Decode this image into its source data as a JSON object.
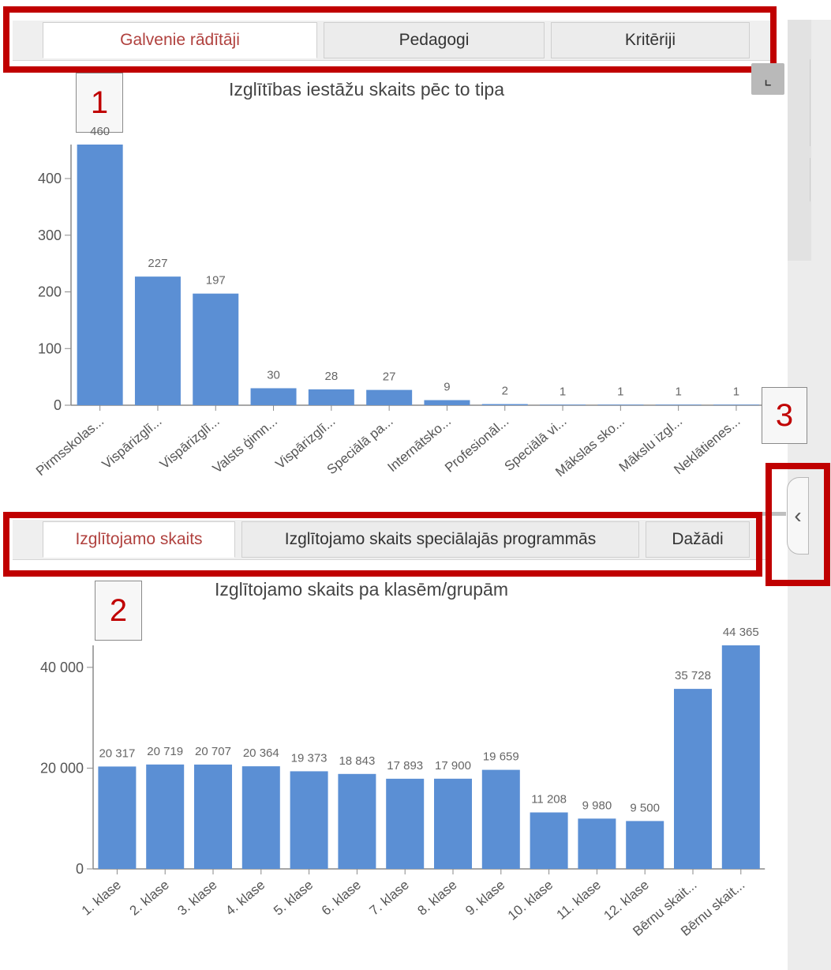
{
  "top_tabs": [
    "Galvenie rādītāji",
    "Pedagogi",
    "Kritēriji"
  ],
  "bottom_tabs": [
    "Izglītojamo skaits",
    "Izglītojamo skaits speciālajās programmās",
    "Dažādi"
  ],
  "badges": {
    "one": "1",
    "two": "2",
    "three": "3"
  },
  "icons": {
    "expand": "expand-corner-icon",
    "collapse": "chevron-left-icon"
  },
  "colors": {
    "bar": "#5b8fd4",
    "annotation": "#c00000",
    "active_tab_text": "#b0413e"
  },
  "chart_data": [
    {
      "type": "bar",
      "title": "Izglītības iestāžu skaits pēc to tipa",
      "categories": [
        "Pirmsskolas...",
        "Vispārizglī...",
        "Vispārizglī...",
        "Valsts ģimn...",
        "Vispārizglī...",
        "Speciālā pa...",
        "Internātsko...",
        "Profesionāl...",
        "Speciālā vi...",
        "Mākslas sko...",
        "Mākslu izgl...",
        "Neklātienes..."
      ],
      "values": [
        460,
        227,
        197,
        30,
        28,
        27,
        9,
        2,
        1,
        1,
        1,
        1
      ],
      "value_labels": [
        "460",
        "227",
        "197",
        "30",
        "28",
        "27",
        "9",
        "2",
        "1",
        "1",
        "1",
        "1"
      ],
      "yticks": [
        0,
        100,
        200,
        300,
        400
      ],
      "ytick_labels": [
        "0",
        "100",
        "200",
        "300",
        "400"
      ],
      "ylim": [
        0,
        460
      ],
      "grid": false
    },
    {
      "type": "bar",
      "title": "Izglītojamo skaits pa klasēm/grupām",
      "categories": [
        "1. klase",
        "2. klase",
        "3. klase",
        "4. klase",
        "5. klase",
        "6. klase",
        "7. klase",
        "8. klase",
        "9. klase",
        "10. klase",
        "11. klase",
        "12. klase",
        "Bērnu skait...",
        "Bērnu skait..."
      ],
      "values": [
        20317,
        20719,
        20707,
        20364,
        19373,
        18843,
        17893,
        17900,
        19659,
        11208,
        9980,
        9500,
        35728,
        44365
      ],
      "value_labels": [
        "20 317",
        "20 719",
        "20 707",
        "20 364",
        "19 373",
        "18 843",
        "17 893",
        "17 900",
        "19 659",
        "11 208",
        "9 980",
        "9 500",
        "35 728",
        "44 365"
      ],
      "yticks": [
        0,
        20000,
        40000
      ],
      "ytick_labels": [
        "0",
        "20 000",
        "40 000"
      ],
      "ylim": [
        0,
        44365
      ],
      "grid": false
    }
  ]
}
